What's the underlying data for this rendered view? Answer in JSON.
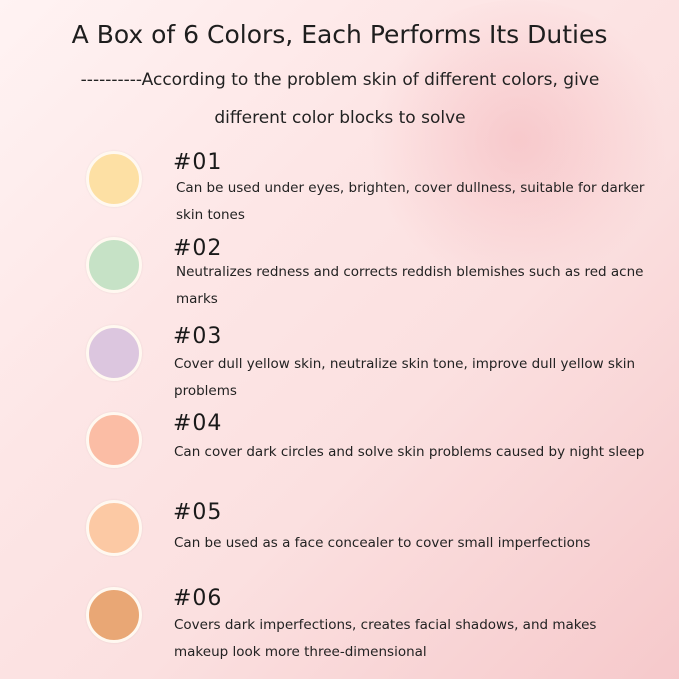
{
  "title": "A Box of 6 Colors, Each Performs Its Duties",
  "subtitle_line1": "----------According to the problem skin of different colors, give",
  "subtitle_line2": "different color blocks to solve",
  "items": [
    {
      "number": "#01",
      "color": "#fde0a4",
      "text": "Can be used under eyes, brighten, cover dullness, suitable for darker skin tones"
    },
    {
      "number": "#02",
      "color": "#c6e2c6",
      "text": "Neutralizes redness and corrects reddish blemishes such as red acne marks"
    },
    {
      "number": "#03",
      "color": "#dcc6df",
      "text": "Cover dull yellow skin, neutralize skin tone, improve dull yellow skin problems"
    },
    {
      "number": "#04",
      "color": "#fbbda5",
      "text": "Can cover dark circles and solve skin problems caused by night sleep"
    },
    {
      "number": "#05",
      "color": "#fcc9a4",
      "text": "Can be used as a face concealer to cover small imperfections"
    },
    {
      "number": "#06",
      "color": "#e9a775",
      "text": "Covers dark imperfections, creates facial shadows, and makes makeup look more three-dimensional"
    }
  ]
}
